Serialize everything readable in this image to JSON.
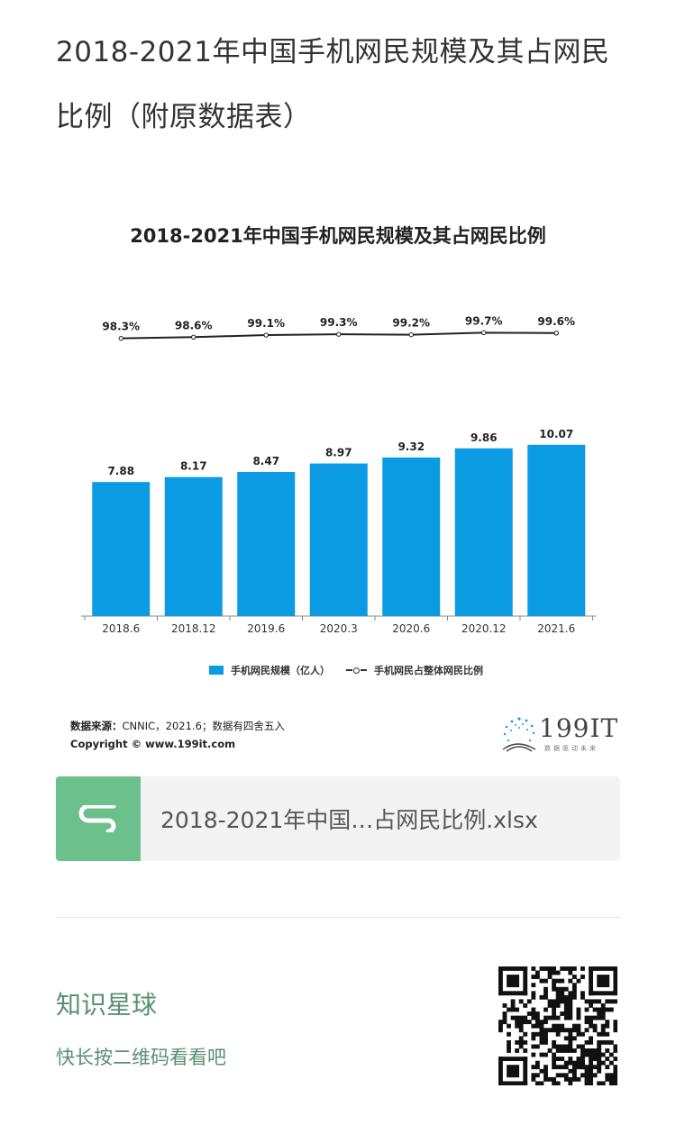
{
  "page": {
    "title": "2018-2021年中国手机网民规模及其占网民比例（附原数据表）"
  },
  "chart_data": {
    "type": "bar",
    "title": "2018-2021年中国手机网民规模及其占网民比例",
    "categories": [
      "2018.6",
      "2018.12",
      "2019.6",
      "2020.3",
      "2020.6",
      "2020.12",
      "2021.6"
    ],
    "series": [
      {
        "name": "手机网民规模（亿人）",
        "type": "bar",
        "values": [
          7.88,
          8.17,
          8.47,
          8.97,
          9.32,
          9.86,
          10.07
        ],
        "labels": [
          "7.88",
          "8.17",
          "8.47",
          "8.97",
          "9.32",
          "9.86",
          "10.07"
        ],
        "color": "#0b9be3"
      },
      {
        "name": "手机网民占整体网民比例",
        "type": "line",
        "values": [
          98.3,
          98.6,
          99.1,
          99.3,
          99.2,
          99.7,
          99.6
        ],
        "labels": [
          "98.3%",
          "98.6%",
          "99.1%",
          "99.3%",
          "99.2%",
          "99.7%",
          "99.6%"
        ],
        "color": "#222222"
      }
    ],
    "ylim_bar": [
      0,
      18
    ],
    "ylim_line": [
      0,
      100
    ],
    "legend": "bottom",
    "grid": false
  },
  "source": {
    "label": "数据来源：",
    "text": "CNNIC，2021.6；数据有四舍五入",
    "copyright": "Copyright © www.199it.com"
  },
  "logo": {
    "text": "199IT",
    "sub": "数据驱动未来"
  },
  "file": {
    "name": "2018-2021年中国…占网民比例.xlsx",
    "icon": "spreadsheet-s-icon",
    "icon_color": "#6cc08b"
  },
  "planet": {
    "title": "知识星球",
    "subtitle": "快长按二维码看看吧"
  },
  "qr": {
    "icon": "qr-code-icon"
  }
}
